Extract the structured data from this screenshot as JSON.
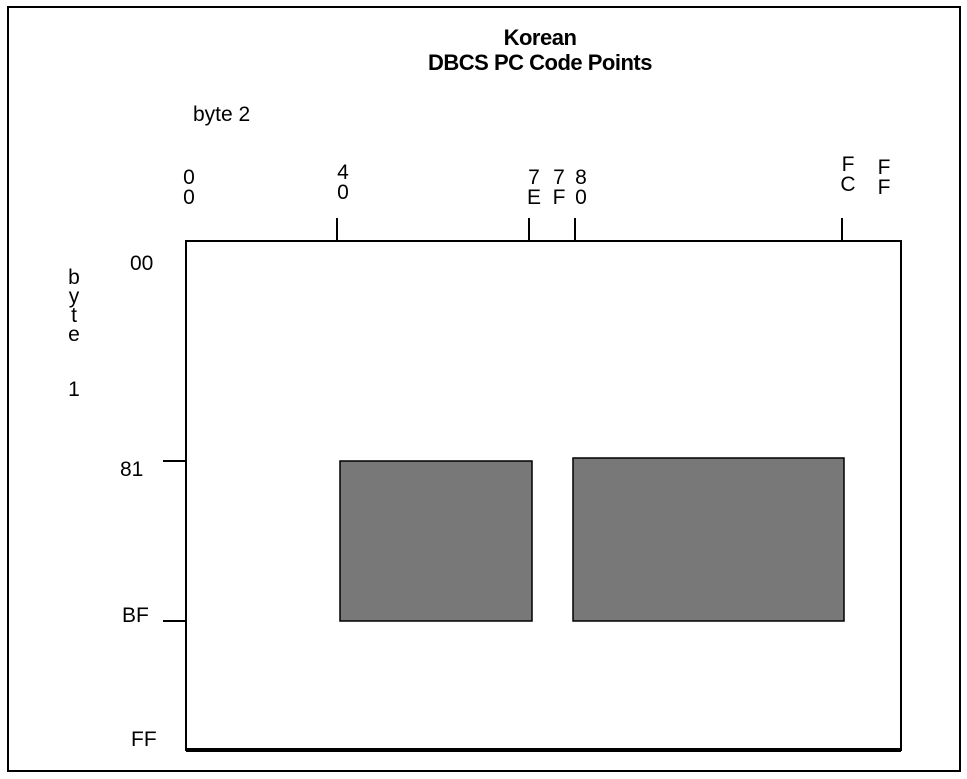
{
  "title_line1": "Korean",
  "title_line2": "DBCS PC Code Points",
  "byte2_label": "byte 2",
  "byte1_label": "byte 1",
  "byte2_ticks": [
    {
      "id": "00",
      "label": "00"
    },
    {
      "id": "40",
      "label": "40"
    },
    {
      "id": "7E",
      "label": "7E"
    },
    {
      "id": "7F",
      "label": "7F"
    },
    {
      "id": "80",
      "label": "80"
    },
    {
      "id": "FC",
      "label": "FC"
    },
    {
      "id": "FF",
      "label": "FF"
    }
  ],
  "byte1_ticks": [
    {
      "id": "00",
      "label": "00"
    },
    {
      "id": "81",
      "label": "81"
    },
    {
      "id": "BF",
      "label": "BF"
    },
    {
      "id": "FF",
      "label": "FF"
    }
  ],
  "regions": [
    {
      "byte2_from": "40",
      "byte2_to": "7E",
      "byte1_from": "81",
      "byte1_to": "BF"
    },
    {
      "byte2_from": "80",
      "byte2_to": "FC",
      "byte1_from": "81",
      "byte1_to": "BF"
    }
  ],
  "colors": {
    "region_fill": "#787878",
    "line": "#000000",
    "background": "#ffffff"
  }
}
